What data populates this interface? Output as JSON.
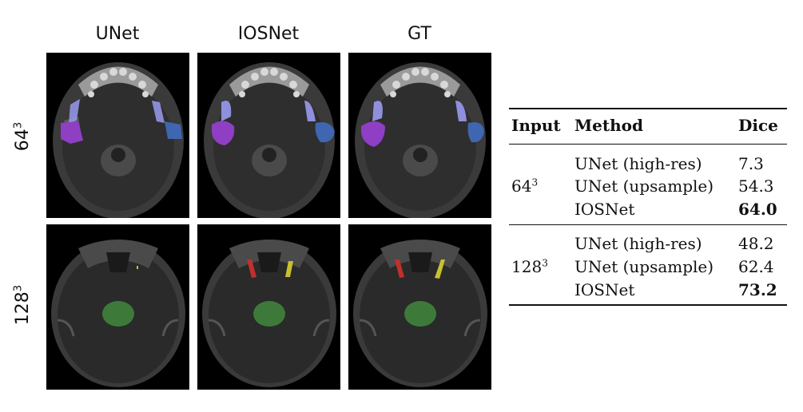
{
  "columns": [
    "UNet",
    "IOSNet",
    "GT"
  ],
  "rows": [
    {
      "base": "64",
      "exp": "3"
    },
    {
      "base": "128",
      "exp": "3"
    }
  ],
  "table": {
    "headers": {
      "input": "Input",
      "method": "Method",
      "dice": "Dice"
    },
    "groups": [
      {
        "input_base": "64",
        "input_exp": "3",
        "entries": [
          {
            "method": "UNet (high-res)",
            "dice": "7.3"
          },
          {
            "method": "UNet (upsample)",
            "dice": "54.3"
          },
          {
            "method": "IOSNet",
            "dice": "64.0"
          }
        ]
      },
      {
        "input_base": "128",
        "input_exp": "3",
        "entries": [
          {
            "method": "UNet (high-res)",
            "dice": "48.2"
          },
          {
            "method": "UNet (upsample)",
            "dice": "62.4"
          },
          {
            "method": "IOSNet",
            "dice": "73.2"
          }
        ]
      }
    ]
  },
  "colors": {
    "purple_mask": "#8e3fc4",
    "blue_mask": "#3f66b0",
    "lavender_mask": "#9a9af0",
    "green_mask": "#3d7a3a",
    "red_mask": "#c0302e",
    "yellow_mask": "#c8c030"
  }
}
